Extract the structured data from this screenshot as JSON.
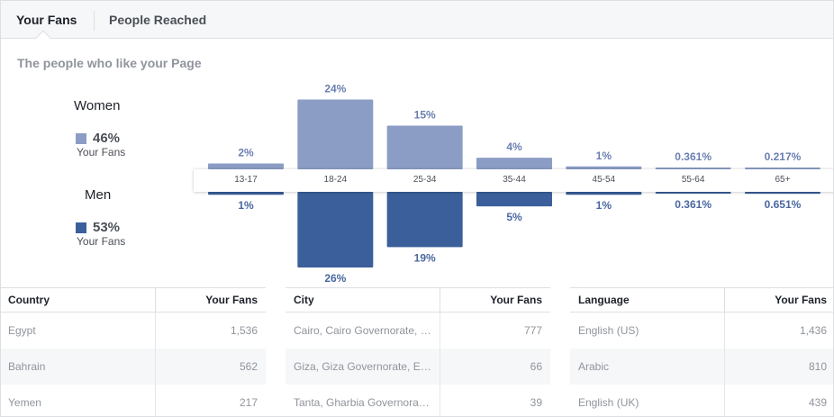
{
  "tabs": [
    {
      "label": "Your Fans",
      "active": true
    },
    {
      "label": "People Reached",
      "active": false
    }
  ],
  "subtitle": "The people who like your Page",
  "legend": {
    "women": {
      "title": "Women",
      "percent": "46%",
      "sub": "Your Fans",
      "color": "#8c9dc5"
    },
    "men": {
      "title": "Men",
      "percent": "53%",
      "sub": "Your Fans",
      "color": "#3b5f9a"
    }
  },
  "chart_data": {
    "type": "bar",
    "categories": [
      "13-17",
      "18-24",
      "25-34",
      "35-44",
      "45-54",
      "55-64",
      "65+"
    ],
    "series": [
      {
        "name": "Women",
        "values": [
          2,
          24,
          15,
          4,
          1,
          0.361,
          0.217
        ],
        "labels": [
          "2%",
          "24%",
          "15%",
          "4%",
          "1%",
          "0.361%",
          "0.217%"
        ],
        "color": "#8c9dc5",
        "direction": "up"
      },
      {
        "name": "Men",
        "values": [
          1,
          26,
          19,
          5,
          1,
          0.361,
          0.651
        ],
        "labels": [
          "1%",
          "26%",
          "19%",
          "5%",
          "1%",
          "0.361%",
          "0.651%"
        ],
        "color": "#3b5f9a",
        "direction": "down"
      }
    ],
    "ylim": [
      0,
      26
    ]
  },
  "tables": [
    {
      "header": {
        "name": "Country",
        "value": "Your Fans"
      },
      "rows": [
        {
          "name": "Egypt",
          "value": "1,536"
        },
        {
          "name": "Bahrain",
          "value": "562"
        },
        {
          "name": "Yemen",
          "value": "217"
        }
      ]
    },
    {
      "header": {
        "name": "City",
        "value": "Your Fans"
      },
      "rows": [
        {
          "name": "Cairo, Cairo Governorate, Egypt",
          "value": "777"
        },
        {
          "name": "Giza, Giza Governorate, Egypt",
          "value": "66"
        },
        {
          "name": "Tanta, Gharbia Governorate, Egypt",
          "value": "39"
        }
      ]
    },
    {
      "header": {
        "name": "Language",
        "value": "Your Fans"
      },
      "rows": [
        {
          "name": "English (US)",
          "value": "1,436"
        },
        {
          "name": "Arabic",
          "value": "810"
        },
        {
          "name": "English (UK)",
          "value": "439"
        }
      ]
    }
  ]
}
